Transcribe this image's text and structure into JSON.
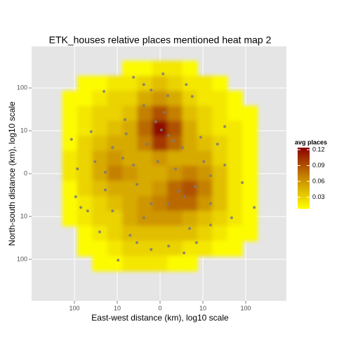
{
  "chart_data": {
    "type": "density-heatmap",
    "title": "ETK_houses relative places mentioned heat map 2",
    "x_label": "East-west distance (km), log10 scale",
    "y_label": "North-south distance (km), log10 scale",
    "xlim": [
      -3,
      2.95
    ],
    "ylim": [
      -2.97,
      2.97
    ],
    "xticks": [
      {
        "value": -2,
        "label": "100"
      },
      {
        "value": -1,
        "label": "10"
      },
      0,
      {
        "value": 1,
        "label": "10"
      },
      {
        "value": 2,
        "label": "100"
      }
    ],
    "yticks": [
      {
        "value": 2,
        "label": "100"
      },
      {
        "value": 1,
        "label": "10"
      },
      0,
      {
        "value": -1,
        "label": "10"
      },
      {
        "value": -2,
        "label": "100"
      }
    ],
    "grid": true,
    "legend": {
      "title": "avg places",
      "position": "right",
      "fill_lim": [
        0.008,
        0.124
      ],
      "ticks": [
        0.03,
        0.06,
        0.09,
        0.12
      ],
      "colors": [
        "#ffff00",
        "#c88a00",
        "#8b0000"
      ]
    },
    "density": {
      "x": [
        -2.1,
        -1.75,
        -1.4,
        -1.05,
        -0.7,
        -0.35,
        0,
        0.35,
        0.7,
        1.05,
        1.4,
        1.75,
        2.1
      ],
      "y": [
        2.45,
        2.1,
        1.75,
        1.4,
        1.05,
        0.7,
        0.35,
        0,
        -0.35,
        -0.7,
        -1.05,
        -1.4,
        -1.75,
        -2.1
      ],
      "z": [
        [
          null,
          null,
          null,
          null,
          0.01,
          0.01,
          0.02,
          0.02,
          0.01,
          null,
          null,
          null,
          null
        ],
        [
          null,
          0.01,
          0.01,
          0.02,
          0.02,
          0.03,
          0.04,
          0.03,
          0.02,
          0.02,
          0.01,
          null,
          null
        ],
        [
          0.01,
          0.01,
          0.02,
          0.03,
          0.03,
          0.05,
          0.06,
          0.05,
          0.03,
          0.02,
          0.02,
          0.01,
          null
        ],
        [
          0.01,
          0.02,
          0.03,
          0.03,
          0.04,
          0.07,
          0.09,
          0.07,
          0.04,
          0.03,
          0.02,
          0.01,
          0.01
        ],
        [
          0.01,
          0.02,
          0.03,
          0.04,
          0.05,
          0.08,
          0.12,
          0.09,
          0.05,
          0.03,
          0.02,
          0.02,
          0.01
        ],
        [
          0.01,
          0.03,
          0.04,
          0.05,
          0.05,
          0.07,
          0.1,
          0.08,
          0.05,
          0.04,
          0.03,
          0.02,
          0.01
        ],
        [
          0.02,
          0.03,
          0.05,
          0.06,
          0.05,
          0.05,
          0.06,
          0.05,
          0.05,
          0.05,
          0.03,
          0.02,
          0.01
        ],
        [
          0.02,
          0.03,
          0.05,
          0.07,
          0.06,
          0.05,
          0.05,
          0.06,
          0.07,
          0.06,
          0.04,
          0.02,
          0.01
        ],
        [
          0.01,
          0.03,
          0.04,
          0.05,
          0.05,
          0.05,
          0.06,
          0.08,
          0.09,
          0.07,
          0.04,
          0.02,
          0.01
        ],
        [
          0.01,
          0.02,
          0.03,
          0.04,
          0.05,
          0.06,
          0.07,
          0.08,
          0.08,
          0.06,
          0.04,
          0.02,
          0.01
        ],
        [
          0.01,
          0.02,
          0.03,
          0.03,
          0.05,
          0.06,
          0.06,
          0.06,
          0.05,
          0.04,
          0.03,
          0.02,
          0.01
        ],
        [
          null,
          0.01,
          0.02,
          0.03,
          0.04,
          0.04,
          0.04,
          0.04,
          0.04,
          0.03,
          0.02,
          0.01,
          0.01
        ],
        [
          null,
          0.01,
          0.01,
          0.02,
          0.03,
          0.03,
          0.03,
          0.03,
          0.02,
          0.02,
          0.01,
          0.01,
          null
        ],
        [
          null,
          null,
          0.01,
          0.01,
          0.02,
          0.02,
          0.02,
          0.01,
          0.01,
          null,
          null,
          null,
          null
        ]
      ]
    },
    "points": {
      "color": "#7a7a7a",
      "x": [
        -1.61,
        -2.07,
        -1.31,
        -0.38,
        -0.21,
        0.18,
        0.61,
        0.75,
        0.1,
        -0.1,
        0.03,
        0.2,
        0.31,
        -0.3,
        -0.82,
        -1.11,
        -0.87,
        -1.52,
        -1.28,
        -0.62,
        -0.54,
        -1.93,
        -1.97,
        -1.85,
        -1.41,
        -0.98,
        -0.7,
        -0.38,
        -0.21,
        0.2,
        0.44,
        0.57,
        0.82,
        1.18,
        1.02,
        1.34,
        1.51,
        1.92,
        2.2,
        1.67,
        1.18,
        0.85,
        0.56,
        0.2,
        -0.21,
        -0.54,
        1.18,
        0.36,
        -0.05,
        0.52,
        -0.79,
        -0.38,
        0.07,
        -0.62,
        -1.69,
        -1.11,
        0.69,
        1.51,
        0.95,
        -1.28
      ],
      "y": [
        0.98,
        0.8,
        1.92,
        2.08,
        1.95,
        1.82,
        2.08,
        1.8,
        1.43,
        1.21,
        1.02,
        0.89,
        0.77,
        0.69,
        1.26,
        0.61,
        0.36,
        0.28,
        0.03,
        0.2,
        -0.25,
        0.11,
        -0.54,
        -0.79,
        -1.36,
        -2.02,
        -1.44,
        -1.03,
        -0.7,
        -0.7,
        -0.41,
        -0.54,
        -0.3,
        -0.05,
        0.28,
        0.69,
        1.1,
        -0.21,
        -0.79,
        -1.03,
        -1.2,
        -1.61,
        -1.85,
        -1.69,
        -1.77,
        -1.61,
        -0.7,
        0.11,
        0.28,
        0.61,
        0.93,
        1.59,
        2.33,
        2.25,
        -0.87,
        -0.87,
        -1.28,
        0.2,
        0.85,
        -0.38
      ]
    }
  }
}
